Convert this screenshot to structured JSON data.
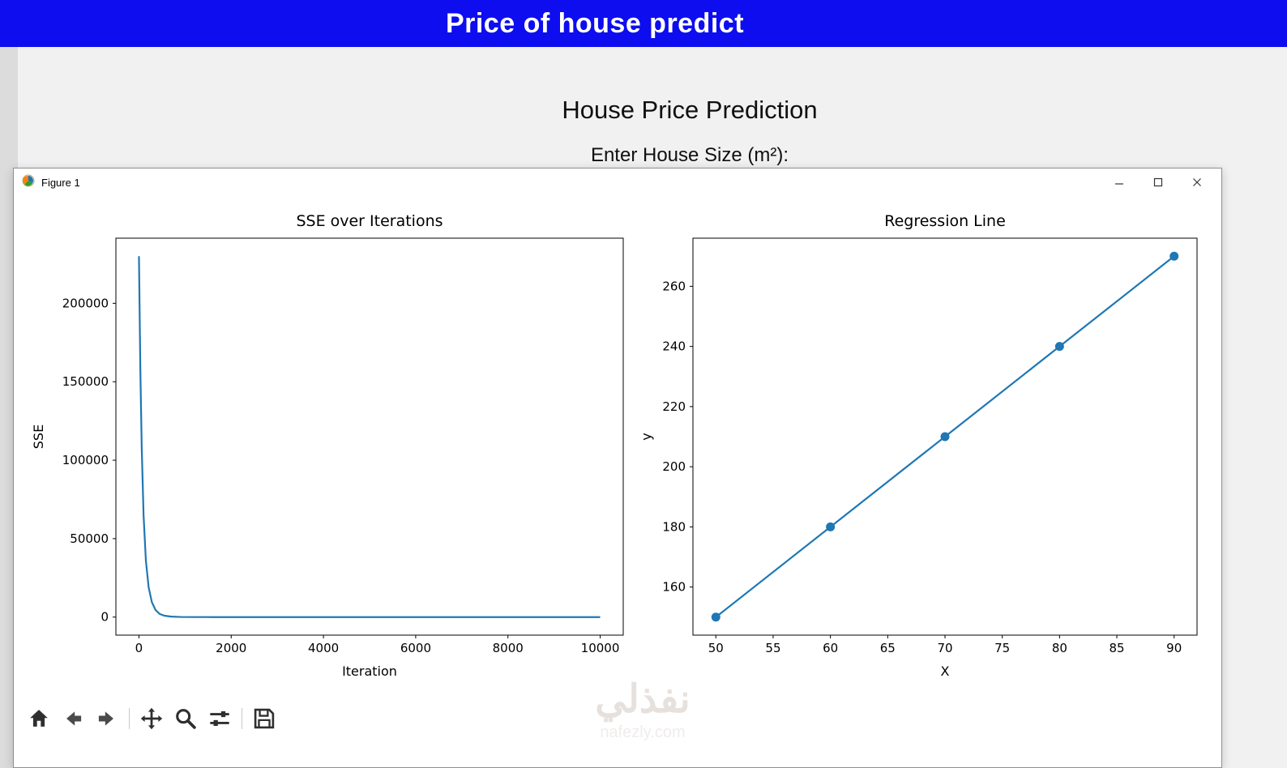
{
  "banner": {
    "title": "Price of house predict",
    "bg_color": "#0d0df0",
    "text_color": "#ffffff"
  },
  "page": {
    "heading": "House Price Prediction",
    "size_input_label": "Enter House Size (m²):"
  },
  "figure_window": {
    "title": "Figure 1",
    "window_icon": "matplotlib-logo-icon",
    "controls": [
      "minimize-icon",
      "maximize-icon",
      "close-icon"
    ],
    "toolbar_icons": [
      "home-icon",
      "back-icon",
      "forward-icon",
      "pan-icon",
      "zoom-icon",
      "configure-subplots-icon",
      "save-icon"
    ]
  },
  "chart_data": [
    {
      "type": "line",
      "title": "SSE over Iterations",
      "xlabel": "Iteration",
      "ylabel": "SSE",
      "color": "#1f77b4",
      "grid": false,
      "xlim": [
        -500,
        10500
      ],
      "ylim": [
        -11500,
        241500
      ],
      "xticks": [
        0,
        2000,
        4000,
        6000,
        8000,
        10000
      ],
      "yticks": [
        0,
        50000,
        100000,
        150000,
        200000
      ],
      "markers": false,
      "x": [
        0,
        30,
        60,
        100,
        150,
        210,
        280,
        360,
        450,
        550,
        700,
        900,
        1200,
        1600,
        2200,
        3000,
        4000,
        5000,
        6000,
        7000,
        8000,
        9000,
        10000
      ],
      "y": [
        230000,
        158000,
        108000,
        65000,
        36000,
        19000,
        9500,
        4500,
        2000,
        900,
        300,
        90,
        20,
        5,
        1,
        0.4,
        0.2,
        0.1,
        0.08,
        0.06,
        0.05,
        0.04,
        0.03
      ]
    },
    {
      "type": "scatter-line",
      "title": "Regression Line",
      "xlabel": "X",
      "ylabel": "y",
      "color": "#1f77b4",
      "grid": false,
      "xlim": [
        48,
        92
      ],
      "ylim": [
        144,
        276
      ],
      "xticks": [
        50,
        55,
        60,
        65,
        70,
        75,
        80,
        85,
        90
      ],
      "yticks": [
        160,
        180,
        200,
        220,
        240,
        260
      ],
      "markers": true,
      "x": [
        50,
        60,
        70,
        80,
        90
      ],
      "y": [
        150,
        180,
        210,
        240,
        270
      ]
    }
  ],
  "watermark": {
    "arabic": "نفذلي",
    "domain": "nafezly.com"
  }
}
